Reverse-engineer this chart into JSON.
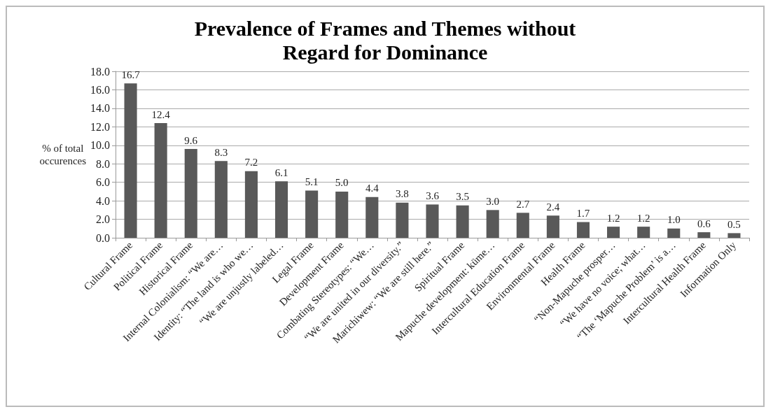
{
  "chart_data": {
    "type": "bar",
    "title": "Prevalence of Frames and Themes without\nRegard for Dominance",
    "ylabel": "% of total\noccurences",
    "categories": [
      "Cultural Frame",
      "Political Frame",
      "Historical Frame",
      "Internal Colonialism: “We are…",
      "Identity: “The land is who we…",
      "“We are unjustly labeled…",
      "Legal Frame",
      "Development Frame",
      "Combating Stereotypes: “We…",
      "“We are united in our diversity.”",
      "Marichiwew: “We are still here.”",
      "Spiritual Frame",
      "Mapuche development: küme…",
      "Intercultural Education Frame",
      "Environmental Frame",
      "Health Frame",
      "“Non-Mapuche prosper…",
      "“We have no voice; what…",
      "“The ‘Mapuche Problem’ is a…",
      "Intercultural Health Frame",
      "Information Only"
    ],
    "values": [
      16.7,
      12.4,
      9.6,
      8.3,
      7.2,
      6.1,
      5.1,
      5.0,
      4.4,
      3.8,
      3.6,
      3.5,
      3.0,
      2.7,
      2.4,
      1.7,
      1.2,
      1.2,
      1.0,
      0.6,
      0.5
    ],
    "value_labels": [
      "16.7",
      "12.4",
      "9.6",
      "8.3",
      "7.2",
      "6.1",
      "5.1",
      "5.0",
      "4.4",
      "3.8",
      "3.6",
      "3.5",
      "3.0",
      "2.7",
      "2.4",
      "1.7",
      "1.2",
      "1.2",
      "1.0",
      "0.6",
      "0.5"
    ],
    "color": "#595959",
    "grid": "y",
    "ylim": [
      0,
      18
    ],
    "yticks": [
      {
        "value": 0,
        "label": "0.0"
      },
      {
        "value": 2,
        "label": "2.0"
      },
      {
        "value": 4,
        "label": "4.0"
      },
      {
        "value": 6,
        "label": "6.0"
      },
      {
        "value": 8,
        "label": "8.0"
      },
      {
        "value": 10,
        "label": "10.0"
      },
      {
        "value": 12,
        "label": "12.0"
      },
      {
        "value": 14,
        "label": "14.0"
      },
      {
        "value": 16,
        "label": "16.0"
      },
      {
        "value": 18,
        "label": "18.0"
      }
    ]
  }
}
